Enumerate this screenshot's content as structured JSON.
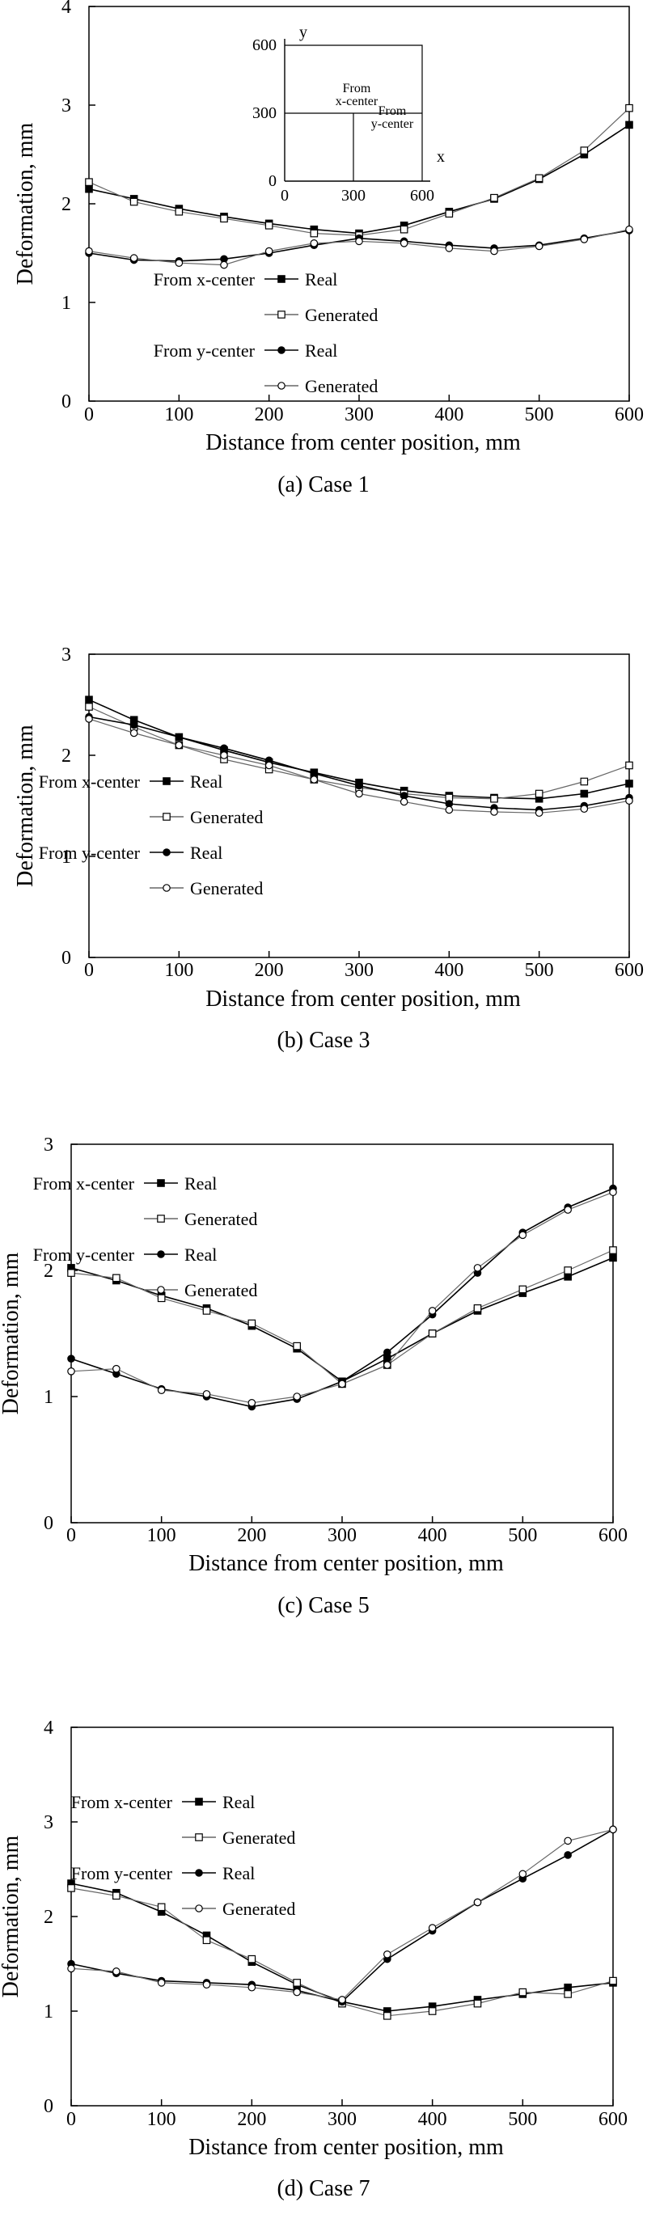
{
  "chart_data": [
    {
      "type": "line",
      "caption": "(a) Case 1",
      "xlabel": "Distance from center position, mm",
      "ylabel": "Deformation, mm",
      "xlim": [
        0,
        600
      ],
      "ylim": [
        0,
        4
      ],
      "xticks": [
        "0",
        "100",
        "200",
        "300",
        "400",
        "500",
        "600"
      ],
      "yticks": [
        "0",
        "1",
        "2",
        "3",
        "4"
      ],
      "legend": {
        "groups": [
          "From x-center",
          "From y-center"
        ],
        "real_label": "Real",
        "generated_label": "Generated"
      },
      "inset": {
        "x_axis_label": "x",
        "y_axis_label": "y",
        "x_ticks": [
          "0",
          "300",
          "600"
        ],
        "y_ticks": [
          "0",
          "300",
          "600"
        ],
        "x_center_text": [
          "From",
          "x-center"
        ],
        "y_center_text": [
          "From",
          "y-center"
        ]
      },
      "series": [
        {
          "name": "From x-center Real",
          "kind": "real",
          "marker": "square",
          "x": [
            0,
            50,
            100,
            150,
            200,
            250,
            300,
            350,
            400,
            450,
            500,
            550,
            600
          ],
          "y": [
            2.15,
            2.05,
            1.95,
            1.87,
            1.8,
            1.74,
            1.7,
            1.78,
            1.92,
            2.05,
            2.25,
            2.5,
            2.8
          ]
        },
        {
          "name": "From x-center Generated",
          "kind": "generated",
          "marker": "square",
          "x": [
            0,
            50,
            100,
            150,
            200,
            250,
            300,
            350,
            400,
            450,
            500,
            550,
            600
          ],
          "y": [
            2.22,
            2.02,
            1.92,
            1.85,
            1.78,
            1.7,
            1.68,
            1.74,
            1.9,
            2.06,
            2.26,
            2.54,
            2.97
          ]
        },
        {
          "name": "From y-center Real",
          "kind": "real",
          "marker": "circle",
          "x": [
            0,
            50,
            100,
            150,
            200,
            250,
            300,
            350,
            400,
            450,
            500,
            550,
            600
          ],
          "y": [
            1.5,
            1.43,
            1.42,
            1.44,
            1.5,
            1.58,
            1.65,
            1.62,
            1.58,
            1.55,
            1.58,
            1.65,
            1.73
          ]
        },
        {
          "name": "From y-center Generated",
          "kind": "generated",
          "marker": "circle",
          "x": [
            0,
            50,
            100,
            150,
            200,
            250,
            300,
            350,
            400,
            450,
            500,
            550,
            600
          ],
          "y": [
            1.52,
            1.45,
            1.4,
            1.38,
            1.52,
            1.6,
            1.62,
            1.6,
            1.55,
            1.52,
            1.57,
            1.64,
            1.74
          ]
        }
      ]
    },
    {
      "type": "line",
      "caption": "(b) Case 3",
      "xlabel": "Distance from center position, mm",
      "ylabel": "Deformation, mm",
      "xlim": [
        0,
        600
      ],
      "ylim": [
        0,
        3
      ],
      "xticks": [
        "0",
        "100",
        "200",
        "300",
        "400",
        "500",
        "600"
      ],
      "yticks": [
        "0",
        "1",
        "2",
        "3"
      ],
      "legend": {
        "groups": [
          "From x-center",
          "From y-center"
        ],
        "real_label": "Real",
        "generated_label": "Generated"
      },
      "series": [
        {
          "name": "From x-center Real",
          "kind": "real",
          "marker": "square",
          "x": [
            0,
            50,
            100,
            150,
            200,
            250,
            300,
            350,
            400,
            450,
            500,
            550,
            600
          ],
          "y": [
            2.55,
            2.35,
            2.18,
            2.05,
            1.93,
            1.83,
            1.73,
            1.65,
            1.6,
            1.58,
            1.57,
            1.62,
            1.72
          ]
        },
        {
          "name": "From x-center Generated",
          "kind": "generated",
          "marker": "square",
          "x": [
            0,
            50,
            100,
            150,
            200,
            250,
            300,
            350,
            400,
            450,
            500,
            550,
            600
          ],
          "y": [
            2.48,
            2.28,
            2.1,
            1.96,
            1.86,
            1.76,
            1.68,
            1.62,
            1.58,
            1.57,
            1.62,
            1.74,
            1.9
          ]
        },
        {
          "name": "From y-center Real",
          "kind": "real",
          "marker": "circle",
          "x": [
            0,
            50,
            100,
            150,
            200,
            250,
            300,
            350,
            400,
            450,
            500,
            550,
            600
          ],
          "y": [
            2.38,
            2.3,
            2.18,
            2.07,
            1.95,
            1.82,
            1.7,
            1.6,
            1.52,
            1.48,
            1.46,
            1.5,
            1.58
          ]
        },
        {
          "name": "From y-center Generated",
          "kind": "generated",
          "marker": "circle",
          "x": [
            0,
            50,
            100,
            150,
            200,
            250,
            300,
            350,
            400,
            450,
            500,
            550,
            600
          ],
          "y": [
            2.36,
            2.22,
            2.1,
            2.0,
            1.9,
            1.76,
            1.62,
            1.54,
            1.46,
            1.44,
            1.43,
            1.47,
            1.55
          ]
        }
      ]
    },
    {
      "type": "line",
      "caption": "(c) Case 5",
      "xlabel": "Distance from center position, mm",
      "ylabel": "Deformation, mm",
      "xlim": [
        0,
        600
      ],
      "ylim": [
        0,
        3
      ],
      "xticks": [
        "0",
        "100",
        "200",
        "300",
        "400",
        "500",
        "600"
      ],
      "yticks": [
        "0",
        "1",
        "2",
        "3"
      ],
      "legend": {
        "groups": [
          "From x-center",
          "From y-center"
        ],
        "real_label": "Real",
        "generated_label": "Generated"
      },
      "series": [
        {
          "name": "From x-center Real",
          "kind": "real",
          "marker": "square",
          "x": [
            0,
            50,
            100,
            150,
            200,
            250,
            300,
            350,
            400,
            450,
            500,
            550,
            600
          ],
          "y": [
            2.02,
            1.92,
            1.8,
            1.7,
            1.56,
            1.38,
            1.12,
            1.3,
            1.5,
            1.68,
            1.82,
            1.95,
            2.1
          ]
        },
        {
          "name": "From x-center Generated",
          "kind": "generated",
          "marker": "square",
          "x": [
            0,
            50,
            100,
            150,
            200,
            250,
            300,
            350,
            400,
            450,
            500,
            550,
            600
          ],
          "y": [
            1.98,
            1.94,
            1.78,
            1.68,
            1.58,
            1.4,
            1.1,
            1.25,
            1.5,
            1.7,
            1.85,
            2.0,
            2.16
          ]
        },
        {
          "name": "From y-center Real",
          "kind": "real",
          "marker": "circle",
          "x": [
            0,
            50,
            100,
            150,
            200,
            250,
            300,
            350,
            400,
            450,
            500,
            550,
            600
          ],
          "y": [
            1.3,
            1.18,
            1.06,
            1.0,
            0.92,
            0.98,
            1.12,
            1.35,
            1.65,
            1.98,
            2.3,
            2.5,
            2.65
          ]
        },
        {
          "name": "From y-center Generated",
          "kind": "generated",
          "marker": "circle",
          "x": [
            0,
            50,
            100,
            150,
            200,
            250,
            300,
            350,
            400,
            450,
            500,
            550,
            600
          ],
          "y": [
            1.2,
            1.22,
            1.05,
            1.02,
            0.95,
            1.0,
            1.1,
            1.25,
            1.68,
            2.02,
            2.28,
            2.48,
            2.62
          ]
        }
      ]
    },
    {
      "type": "line",
      "caption": "(d) Case 7",
      "xlabel": "Distance from center position, mm",
      "ylabel": "Deformation, mm",
      "xlim": [
        0,
        600
      ],
      "ylim": [
        0,
        4
      ],
      "xticks": [
        "0",
        "100",
        "200",
        "300",
        "400",
        "500",
        "600"
      ],
      "yticks": [
        "0",
        "1",
        "2",
        "3",
        "4"
      ],
      "legend": {
        "groups": [
          "From x-center",
          "From y-center"
        ],
        "real_label": "Real",
        "generated_label": "Generated"
      },
      "series": [
        {
          "name": "From x-center Real",
          "kind": "real",
          "marker": "square",
          "x": [
            0,
            50,
            100,
            150,
            200,
            250,
            300,
            350,
            400,
            450,
            500,
            550,
            600
          ],
          "y": [
            2.35,
            2.25,
            2.05,
            1.8,
            1.52,
            1.28,
            1.1,
            1.0,
            1.05,
            1.12,
            1.18,
            1.25,
            1.3
          ]
        },
        {
          "name": "From x-center Generated",
          "kind": "generated",
          "marker": "square",
          "x": [
            0,
            50,
            100,
            150,
            200,
            250,
            300,
            350,
            400,
            450,
            500,
            550,
            600
          ],
          "y": [
            2.3,
            2.22,
            2.1,
            1.75,
            1.55,
            1.3,
            1.08,
            0.95,
            1.0,
            1.08,
            1.2,
            1.18,
            1.32
          ]
        },
        {
          "name": "From y-center Real",
          "kind": "real",
          "marker": "circle",
          "x": [
            0,
            50,
            100,
            150,
            200,
            250,
            300,
            350,
            400,
            450,
            500,
            550,
            600
          ],
          "y": [
            1.5,
            1.4,
            1.32,
            1.3,
            1.28,
            1.22,
            1.1,
            1.55,
            1.85,
            2.15,
            2.4,
            2.65,
            2.92
          ]
        },
        {
          "name": "From y-center Generated",
          "kind": "generated",
          "marker": "circle",
          "x": [
            0,
            50,
            100,
            150,
            200,
            250,
            300,
            350,
            400,
            450,
            500,
            550,
            600
          ],
          "y": [
            1.45,
            1.42,
            1.3,
            1.28,
            1.25,
            1.2,
            1.12,
            1.6,
            1.88,
            2.15,
            2.45,
            2.8,
            2.92
          ]
        }
      ]
    }
  ]
}
